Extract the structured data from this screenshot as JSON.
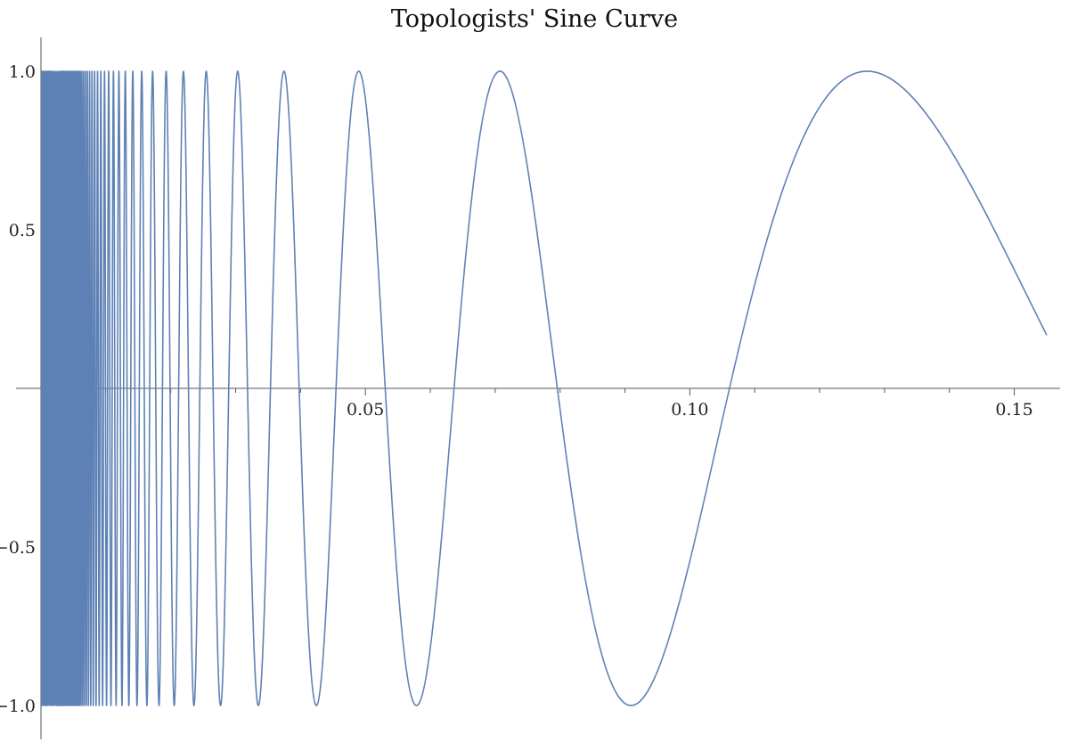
{
  "chart_data": {
    "type": "line",
    "title": "Topologists' Sine Curve",
    "function": "sin(1/x)",
    "x_domain": [
      0,
      0.155
    ],
    "xlim": [
      0,
      0.155
    ],
    "ylim": [
      -1.0,
      1.0
    ],
    "x_ticks": [
      {
        "value": 0.05,
        "label": "0.05"
      },
      {
        "value": 0.1,
        "label": "0.10"
      },
      {
        "value": 0.15,
        "label": "0.15"
      }
    ],
    "y_ticks": [
      {
        "value": 1.0,
        "label": "1.0"
      },
      {
        "value": 0.5,
        "label": "0.5"
      },
      {
        "value": -0.5,
        "label": "−0.5"
      },
      {
        "value": -1.0,
        "label": "−1.0"
      }
    ],
    "grid": false,
    "line_color": "#5e81b5",
    "axis_color": "#555555"
  }
}
